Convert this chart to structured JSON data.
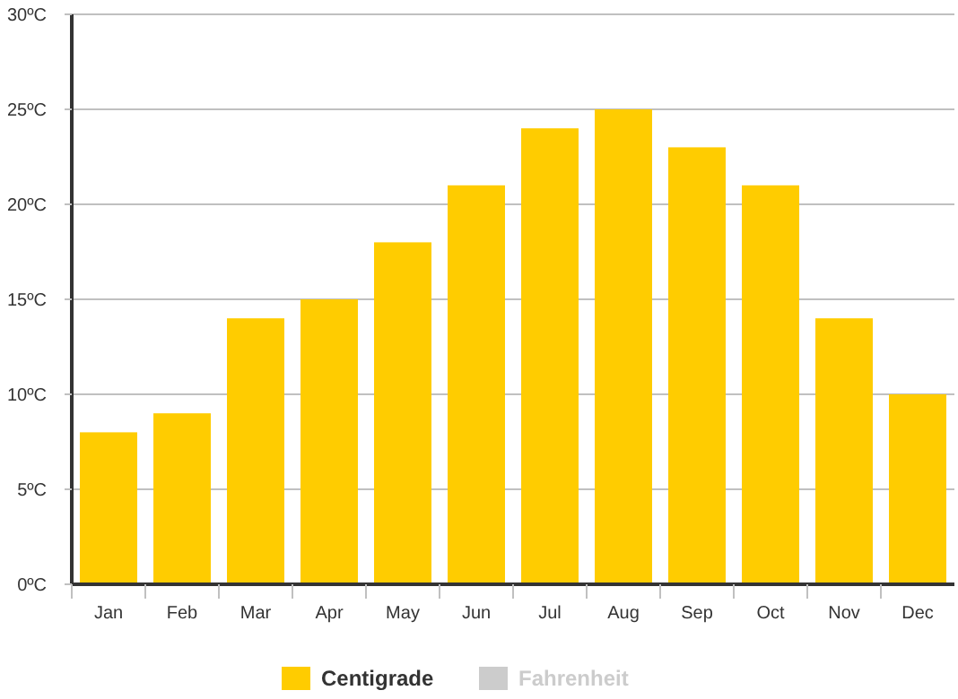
{
  "chart_data": {
    "type": "bar",
    "categories": [
      "Jan",
      "Feb",
      "Mar",
      "Apr",
      "May",
      "Jun",
      "Jul",
      "Aug",
      "Sep",
      "Oct",
      "Nov",
      "Dec"
    ],
    "series": [
      {
        "name": "Centigrade",
        "color": "#ffcc00",
        "values": [
          8,
          9,
          14,
          15,
          18,
          21,
          24,
          25,
          23,
          21,
          14,
          10
        ]
      },
      {
        "name": "Fahrenheit",
        "color": "#cccccc",
        "values": [
          null,
          null,
          null,
          null,
          null,
          null,
          null,
          null,
          null,
          null,
          null,
          null
        ]
      }
    ],
    "ylim": [
      0,
      30
    ],
    "yticks": [
      {
        "value": 0,
        "label": "0ºC"
      },
      {
        "value": 5,
        "label": "5ºC"
      },
      {
        "value": 10,
        "label": "10ºC"
      },
      {
        "value": 15,
        "label": "15ºC"
      },
      {
        "value": 20,
        "label": "20ºC"
      },
      {
        "value": 25,
        "label": "25ºC"
      },
      {
        "value": 30,
        "label": "30ºC"
      }
    ],
    "grid": "y",
    "legend": "bottom"
  }
}
